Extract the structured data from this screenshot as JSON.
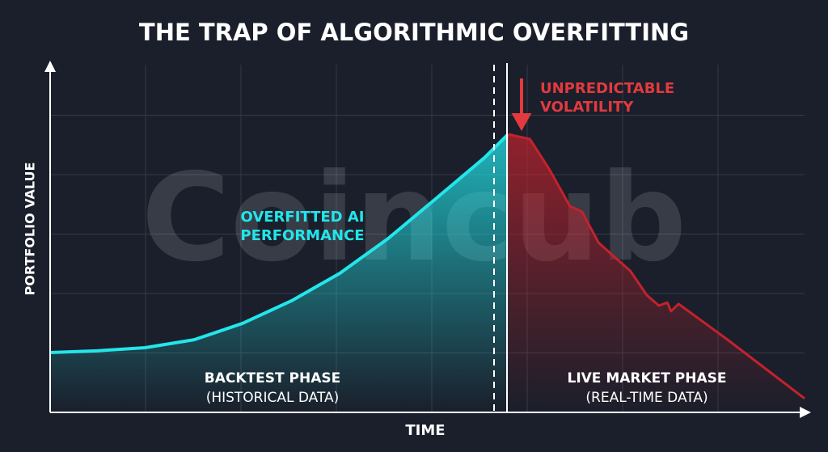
{
  "chart_data": {
    "type": "line",
    "title": "THE TRAP OF ALGORITHMIC OVERFITTING",
    "x_label": "TIME",
    "y_label": "PORTFOLIO VALUE",
    "watermark": "Coincub",
    "xlim": [
      0,
      100
    ],
    "ylim": [
      0,
      100
    ],
    "grid": true,
    "series": [
      {
        "name": "OVERFITTED AI PERFORMANCE",
        "color": "#22e6ea",
        "x": [
          0,
          6.2,
          12.6,
          19.1,
          25.5,
          32,
          38.4,
          44.8,
          51.2,
          57.6,
          60.7
        ],
        "values": [
          17.2,
          17.7,
          18.6,
          20.9,
          25.6,
          32.1,
          40,
          50,
          61.6,
          73.3,
          80
        ]
      },
      {
        "name": "UNPREDICTABLE VOLATILITY",
        "color": "#c4222c",
        "x": [
          60.7,
          63.6,
          66.2,
          68.9,
          70.5,
          72.7,
          74.8,
          76.9,
          79.1,
          80.7,
          81.8,
          82.3,
          83.3,
          89.8,
          100
        ],
        "values": [
          80,
          78.6,
          69.8,
          59.3,
          57.7,
          48.8,
          44.7,
          40.7,
          33.7,
          30.7,
          31.6,
          29.1,
          31.2,
          20.9,
          4.0
        ]
      }
    ],
    "annotations": {
      "overfitted": [
        "OVERFITTED AI",
        "PERFORMANCE"
      ],
      "volatility": [
        "UNPREDICTABLE",
        "VOLATILITY"
      ],
      "backtest": [
        "BACKTEST PHASE",
        "(HISTORICAL DATA)"
      ],
      "live": [
        "LIVE MARKET PHASE",
        "(REAL-TIME DATA)"
      ]
    }
  }
}
